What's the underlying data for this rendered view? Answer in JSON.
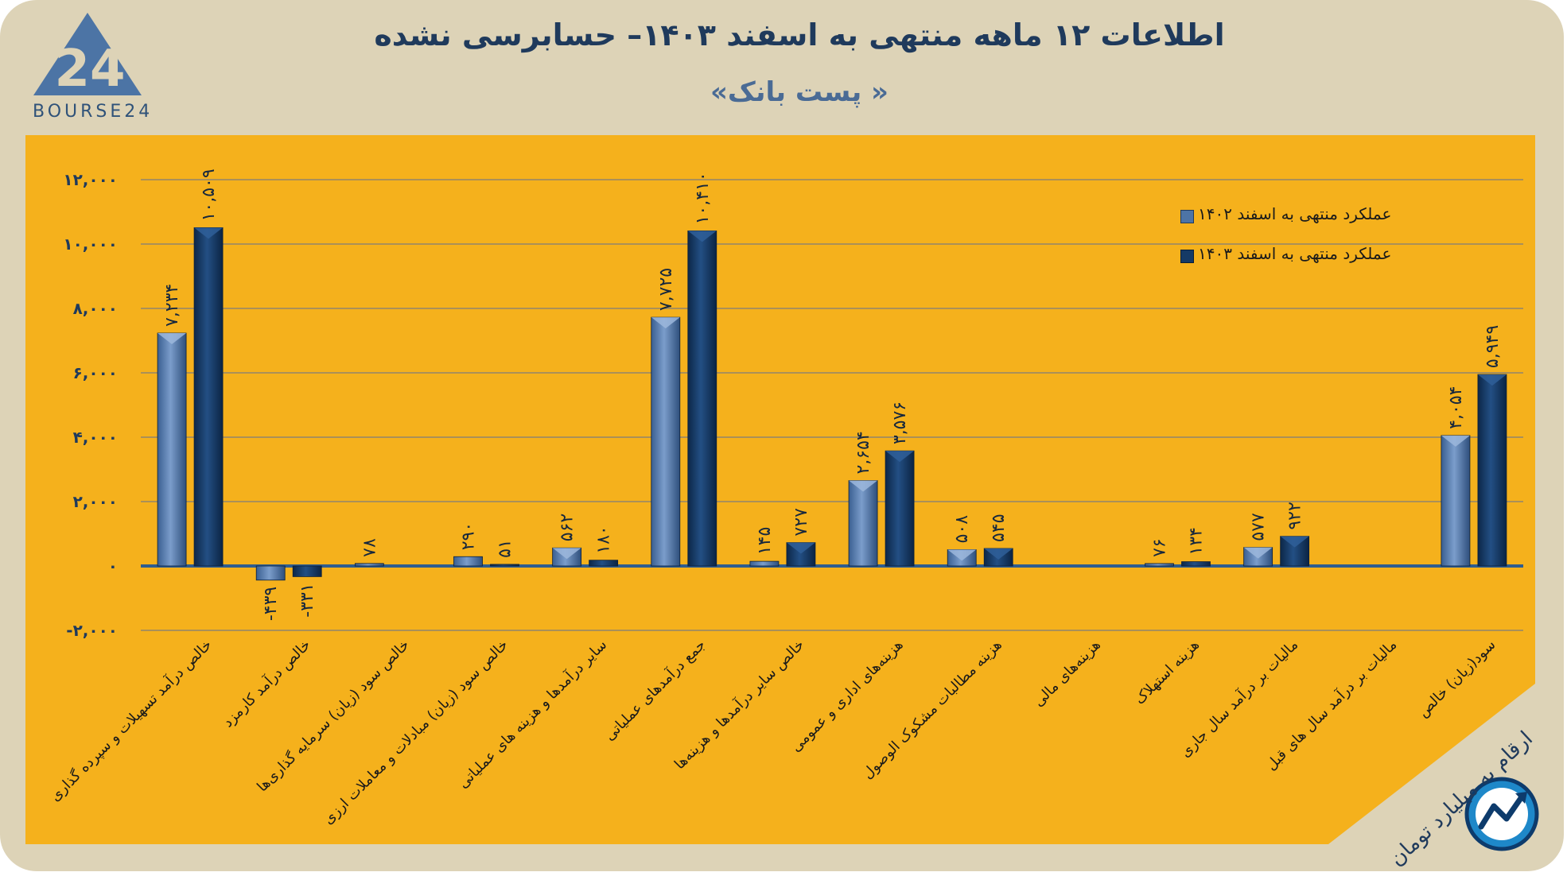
{
  "header": {
    "title": "اطلاعات ۱۲ ماهه منتهی به اسفند  ۱۴۰۳– حسابرسی نشده",
    "subtitle": "« پست بانک»",
    "logo_text": "BOURSE24",
    "logo_number": "24"
  },
  "footer": {
    "units": "ارقام به میلیارد تومان"
  },
  "colors": {
    "page_bg": "#ddd3b7",
    "plot_bg": "#f5b11c",
    "series_1402": "#4d74a6",
    "series_1403": "#153a66",
    "zero_line": "#2f5d8f",
    "grid": "#7d7d7d",
    "axis_text": "#1f3a5c"
  },
  "chart_data": {
    "type": "bar",
    "title": "اطلاعات ۱۲ ماهه منتهی به اسفند  ۱۴۰۳– حسابرسی نشده",
    "subtitle": "« پست بانک»",
    "ylim": [
      -2000,
      12000
    ],
    "yticks": [
      -2000,
      0,
      2000,
      4000,
      6000,
      8000,
      10000,
      12000
    ],
    "ytick_labels": [
      "-۲,۰۰۰",
      "۰",
      "۲,۰۰۰",
      "۴,۰۰۰",
      "۶,۰۰۰",
      "۸,۰۰۰",
      "۱۰,۰۰۰",
      "۱۲,۰۰۰"
    ],
    "grid": true,
    "legend_position": "top-right",
    "categories": [
      "خالص درآمد تسهیلات و سپرده گذاری",
      "خالص درآمد کارمزد",
      "خالص سود (زیان) سرمایه گذاری‌ها",
      "خالص سود (زیان) مبادلات و معاملات ارزی",
      "سایر درآمدها و هزینه های عملیاتی",
      "جمع درآمدهای عملیاتی",
      "خالص سایر درآمدها و هزینه‌ها",
      "هزینه‌های اداری و عمومی",
      "هزینه مطالبات مشکوک الوصول",
      "هزینه‌های مالی",
      "هزینه استهلاک",
      "مالیات بر درآمد سال جاری",
      "مالیات بر درآمد سال های قبل",
      "سود(زیان) خالص"
    ],
    "series": [
      {
        "name": "عملکرد منتهی به اسفند ۱۴۰۲",
        "values": [
          7234,
          -439,
          78,
          290,
          562,
          7725,
          145,
          2654,
          508,
          0,
          76,
          577,
          0,
          4054
        ],
        "labels": [
          "۷,۲۳۴",
          "-۴۳۹",
          "۷۸",
          "۲۹۰",
          "۵۶۲",
          "۷,۷۲۵",
          "۱۴۵",
          "۲,۶۵۴",
          "۵۰۸",
          "",
          "۷۶",
          "۵۷۷",
          "",
          "۴,۰۵۴"
        ]
      },
      {
        "name": "عملکرد منتهی به اسفند ۱۴۰۳",
        "values": [
          10509,
          -331,
          0,
          51,
          180,
          10410,
          727,
          3576,
          545,
          0,
          134,
          922,
          0,
          5949
        ],
        "labels": [
          "۱۰,۵۰۹",
          "-۳۳۱",
          "",
          "۵۱",
          "۱۸۰",
          "۱۰,۴۱۰",
          "۷۲۷",
          "۳,۵۷۶",
          "۵۴۵",
          "",
          "۱۳۴",
          "۹۲۲",
          "",
          "۵,۹۴۹"
        ]
      }
    ]
  }
}
